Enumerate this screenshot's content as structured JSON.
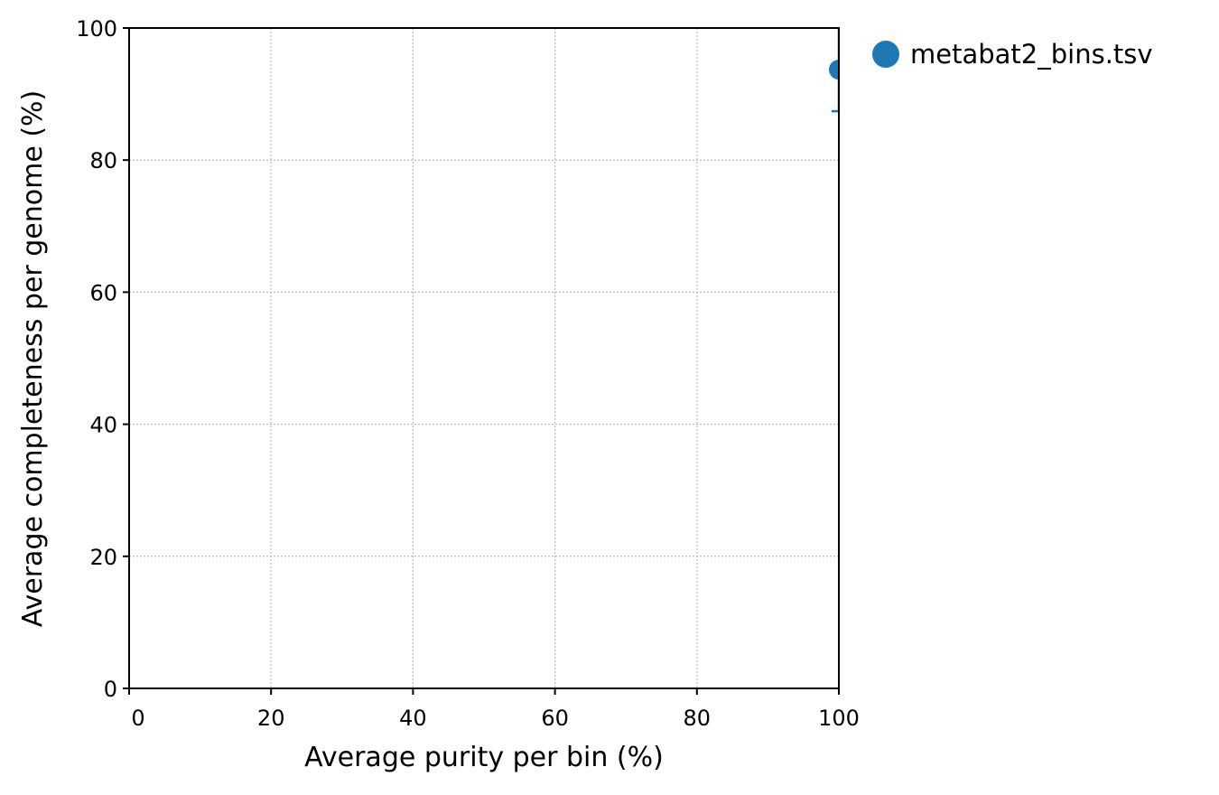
{
  "chart_data": {
    "type": "scatter",
    "xlabel": "Average purity per bin (%)",
    "ylabel": "Average completeness per genome (%)",
    "xlim": [
      0,
      100
    ],
    "ylim": [
      0,
      100
    ],
    "xticks": [
      0,
      20,
      40,
      60,
      80,
      100
    ],
    "yticks": [
      0,
      20,
      40,
      60,
      80,
      100
    ],
    "xtick_labels": [
      "0",
      "20",
      "40",
      "60",
      "80",
      "100"
    ],
    "ytick_labels": [
      "0",
      "20",
      "40",
      "60",
      "80",
      "100"
    ],
    "grid": true,
    "legend_position": "outside-top-right",
    "series": [
      {
        "name": "metabat2_bins.tsv",
        "color": "#1f77b4",
        "points": [
          {
            "x": 100,
            "y": 93.7,
            "x_err": [
              1,
              0
            ],
            "y_err": [
              6.3,
              6.3
            ]
          }
        ]
      }
    ]
  }
}
